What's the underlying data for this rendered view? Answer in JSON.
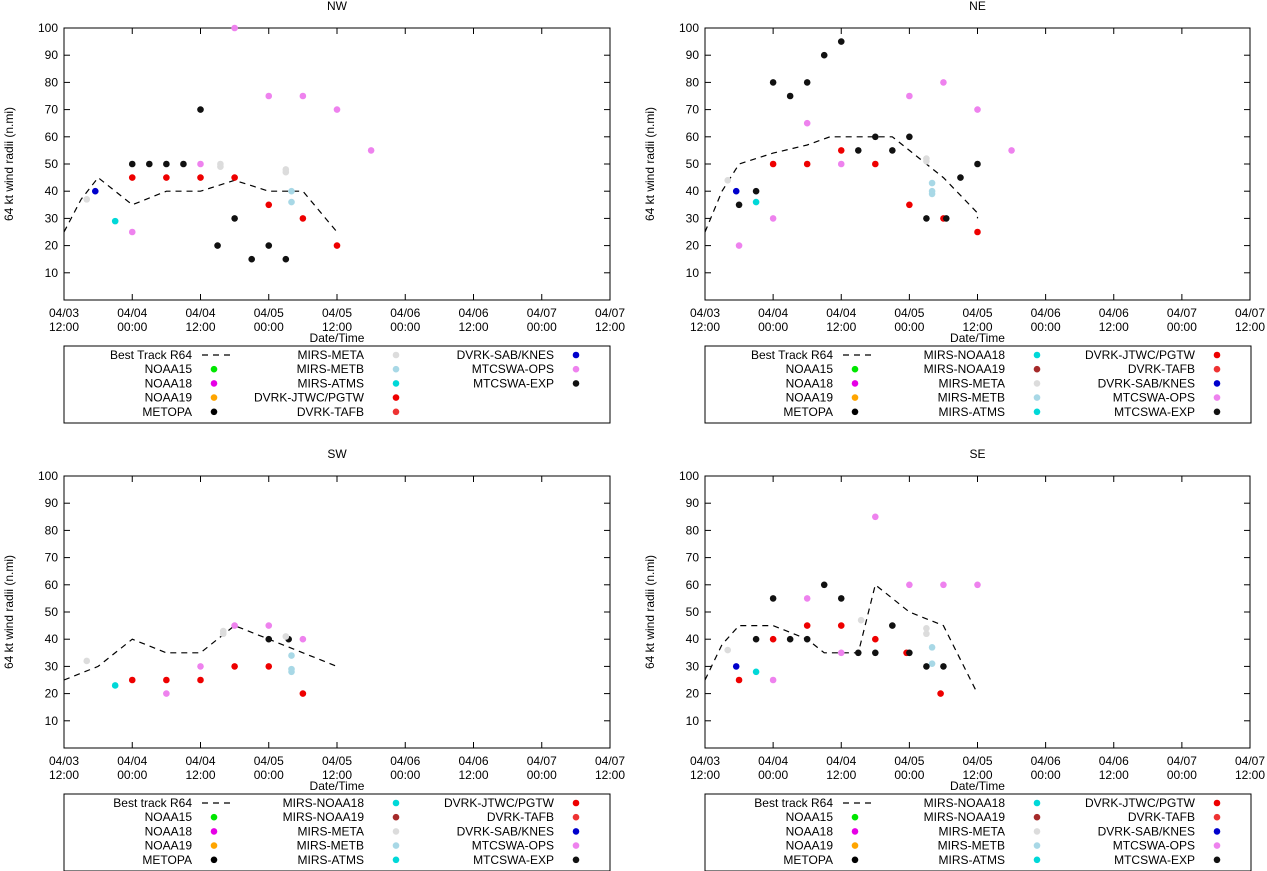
{
  "colors": {
    "NOAA15": "#00e600",
    "NOAA18": "#e600e6",
    "NOAA19": "#ffa500",
    "METOPA": "#000000",
    "MIRS-META": "#dcdcdc",
    "MIRS-METB": "#a8d8e6",
    "MIRS-ATMS": "#00d8d8",
    "MIRS-NOAA18": "#00d8d8",
    "MIRS-NOAA19": "#a52a2a",
    "DVRK-JTWC/PGTW": "#ee0000",
    "DVRK-TAFB": "#ee3333",
    "DVRK-SAB/KNES": "#0000cc",
    "MTCSWA-OPS": "#ee82ee",
    "MTCSWA-EXP": "#111111",
    "best_track": "#000000"
  },
  "chart_data": [
    {
      "type": "scatter",
      "title": "NW",
      "xlabel": "Date/Time",
      "ylabel": "64 kt wind radii (n.mi)",
      "xlim": [
        0,
        96
      ],
      "ylim": [
        0,
        100
      ],
      "yticks": [
        "10",
        "20",
        "30",
        "40",
        "50",
        "60",
        "70",
        "80",
        "90",
        "100"
      ],
      "xticks": [
        {
          "d": "04/03",
          "t": "12:00"
        },
        {
          "d": "04/04",
          "t": "00:00"
        },
        {
          "d": "04/04",
          "t": "12:00"
        },
        {
          "d": "04/05",
          "t": "00:00"
        },
        {
          "d": "04/05",
          "t": "12:00"
        },
        {
          "d": "04/06",
          "t": "00:00"
        },
        {
          "d": "04/06",
          "t": "12:00"
        },
        {
          "d": "04/07",
          "t": "00:00"
        },
        {
          "d": "04/07",
          "t": "12:00"
        }
      ],
      "best_track": [
        [
          0,
          25
        ],
        [
          3,
          37
        ],
        [
          6,
          45
        ],
        [
          9,
          40
        ],
        [
          12,
          35
        ],
        [
          18,
          40
        ],
        [
          24,
          40
        ],
        [
          30,
          44
        ],
        [
          36,
          40
        ],
        [
          42,
          40
        ],
        [
          48,
          25
        ]
      ],
      "points": [
        {
          "s": "DVRK-SAB/KNES",
          "x": 5.5,
          "y": 40
        },
        {
          "s": "MIRS-META",
          "x": 4,
          "y": 37
        },
        {
          "s": "MIRS-ATMS",
          "x": 9,
          "y": 29
        },
        {
          "s": "DVRK-JTWC/PGTW",
          "x": 12,
          "y": 45
        },
        {
          "s": "DVRK-JTWC/PGTW",
          "x": 18,
          "y": 45
        },
        {
          "s": "DVRK-JTWC/PGTW",
          "x": 24,
          "y": 45
        },
        {
          "s": "DVRK-JTWC/PGTW",
          "x": 30,
          "y": 45
        },
        {
          "s": "DVRK-JTWC/PGTW",
          "x": 36,
          "y": 35
        },
        {
          "s": "DVRK-JTWC/PGTW",
          "x": 42,
          "y": 30
        },
        {
          "s": "DVRK-JTWC/PGTW",
          "x": 48,
          "y": 20
        },
        {
          "s": "MTCSWA-EXP",
          "x": 12,
          "y": 50
        },
        {
          "s": "MTCSWA-EXP",
          "x": 15,
          "y": 50
        },
        {
          "s": "MTCSWA-EXP",
          "x": 18,
          "y": 50
        },
        {
          "s": "MTCSWA-EXP",
          "x": 21,
          "y": 50
        },
        {
          "s": "MTCSWA-EXP",
          "x": 24,
          "y": 70
        },
        {
          "s": "MTCSWA-EXP",
          "x": 27,
          "y": 20
        },
        {
          "s": "MTCSWA-EXP",
          "x": 30,
          "y": 30
        },
        {
          "s": "MTCSWA-EXP",
          "x": 33,
          "y": 15
        },
        {
          "s": "MTCSWA-EXP",
          "x": 36,
          "y": 20
        },
        {
          "s": "MTCSWA-EXP",
          "x": 39,
          "y": 15
        },
        {
          "s": "MTCSWA-OPS",
          "x": 12,
          "y": 25
        },
        {
          "s": "MTCSWA-OPS",
          "x": 24,
          "y": 50
        },
        {
          "s": "MTCSWA-OPS",
          "x": 30,
          "y": 100
        },
        {
          "s": "MTCSWA-OPS",
          "x": 36,
          "y": 75
        },
        {
          "s": "MTCSWA-OPS",
          "x": 42,
          "y": 75
        },
        {
          "s": "MTCSWA-OPS",
          "x": 48,
          "y": 70
        },
        {
          "s": "MTCSWA-OPS",
          "x": 54,
          "y": 55
        },
        {
          "s": "MIRS-META",
          "x": 27.5,
          "y": 50
        },
        {
          "s": "MIRS-META",
          "x": 27.5,
          "y": 49
        },
        {
          "s": "MIRS-META",
          "x": 39,
          "y": 48
        },
        {
          "s": "MIRS-META",
          "x": 39,
          "y": 47
        },
        {
          "s": "MIRS-METB",
          "x": 40,
          "y": 40
        },
        {
          "s": "MIRS-METB",
          "x": 40,
          "y": 36
        }
      ],
      "legend": [
        [
          "Best Track R64",
          "MIRS-META",
          "DVRK-SAB/KNES"
        ],
        [
          "NOAA15",
          "MIRS-METB",
          "MTCSWA-OPS"
        ],
        [
          "NOAA18",
          "MIRS-ATMS",
          "MTCSWA-EXP"
        ],
        [
          "NOAA19",
          "DVRK-JTWC/PGTW",
          ""
        ],
        [
          "METOPA",
          "DVRK-TAFB",
          ""
        ]
      ]
    },
    {
      "type": "scatter",
      "title": "NE",
      "xlabel": "Date/Time",
      "ylabel": "64 kt wind radii (n.mi)",
      "xlim": [
        0,
        96
      ],
      "ylim": [
        0,
        100
      ],
      "yticks": [
        "10",
        "20",
        "30",
        "40",
        "50",
        "60",
        "70",
        "80",
        "90",
        "100"
      ],
      "xticks": [
        {
          "d": "04/03",
          "t": "12:00"
        },
        {
          "d": "04/04",
          "t": "00:00"
        },
        {
          "d": "04/04",
          "t": "12:00"
        },
        {
          "d": "04/05",
          "t": "00:00"
        },
        {
          "d": "04/05",
          "t": "12:00"
        },
        {
          "d": "04/06",
          "t": "00:00"
        },
        {
          "d": "04/06",
          "t": "12:00"
        },
        {
          "d": "04/07",
          "t": "00:00"
        },
        {
          "d": "04/07",
          "t": "12:00"
        }
      ],
      "best_track": [
        [
          0,
          25
        ],
        [
          3,
          40
        ],
        [
          6,
          50
        ],
        [
          12,
          54
        ],
        [
          18,
          57
        ],
        [
          22,
          60
        ],
        [
          27,
          60
        ],
        [
          30,
          60
        ],
        [
          33,
          60
        ],
        [
          36,
          55
        ],
        [
          42,
          45
        ],
        [
          48,
          32
        ],
        [
          48,
          30
        ]
      ],
      "points": [
        {
          "s": "MIRS-META",
          "x": 4,
          "y": 44
        },
        {
          "s": "DVRK-SAB/KNES",
          "x": 5.5,
          "y": 40
        },
        {
          "s": "MTCSWA-EXP",
          "x": 6,
          "y": 35
        },
        {
          "s": "MTCSWA-OPS",
          "x": 6,
          "y": 20
        },
        {
          "s": "MIRS-ATMS",
          "x": 9,
          "y": 36
        },
        {
          "s": "MTCSWA-EXP",
          "x": 9,
          "y": 40
        },
        {
          "s": "MTCSWA-EXP",
          "x": 12,
          "y": 80
        },
        {
          "s": "MTCSWA-OPS",
          "x": 12,
          "y": 30
        },
        {
          "s": "DVRK-JTWC/PGTW",
          "x": 12,
          "y": 50
        },
        {
          "s": "MTCSWA-EXP",
          "x": 15,
          "y": 75
        },
        {
          "s": "MTCSWA-EXP",
          "x": 18,
          "y": 80
        },
        {
          "s": "MTCSWA-OPS",
          "x": 18,
          "y": 65
        },
        {
          "s": "DVRK-JTWC/PGTW",
          "x": 18,
          "y": 50
        },
        {
          "s": "MTCSWA-EXP",
          "x": 21,
          "y": 90
        },
        {
          "s": "MTCSWA-EXP",
          "x": 24,
          "y": 95
        },
        {
          "s": "DVRK-JTWC/PGTW",
          "x": 24,
          "y": 55
        },
        {
          "s": "MTCSWA-OPS",
          "x": 24,
          "y": 50
        },
        {
          "s": "MTCSWA-EXP",
          "x": 27,
          "y": 55
        },
        {
          "s": "MTCSWA-EXP",
          "x": 30,
          "y": 60
        },
        {
          "s": "DVRK-JTWC/PGTW",
          "x": 30,
          "y": 50
        },
        {
          "s": "MTCSWA-EXP",
          "x": 33,
          "y": 55
        },
        {
          "s": "MTCSWA-EXP",
          "x": 36,
          "y": 60
        },
        {
          "s": "MTCSWA-OPS",
          "x": 36,
          "y": 75
        },
        {
          "s": "DVRK-JTWC/PGTW",
          "x": 36,
          "y": 35
        },
        {
          "s": "MIRS-META",
          "x": 39,
          "y": 52
        },
        {
          "s": "MIRS-META",
          "x": 39,
          "y": 51
        },
        {
          "s": "MIRS-METB",
          "x": 40,
          "y": 43
        },
        {
          "s": "MIRS-METB",
          "x": 40,
          "y": 40
        },
        {
          "s": "MIRS-METB",
          "x": 40,
          "y": 39
        },
        {
          "s": "MTCSWA-EXP",
          "x": 39,
          "y": 30
        },
        {
          "s": "DVRK-JTWC/PGTW",
          "x": 42,
          "y": 30
        },
        {
          "s": "MTCSWA-EXP",
          "x": 42.5,
          "y": 30
        },
        {
          "s": "MTCSWA-OPS",
          "x": 42,
          "y": 80
        },
        {
          "s": "MTCSWA-EXP",
          "x": 45,
          "y": 45
        },
        {
          "s": "MTCSWA-EXP",
          "x": 48,
          "y": 50
        },
        {
          "s": "MTCSWA-OPS",
          "x": 48,
          "y": 70
        },
        {
          "s": "DVRK-JTWC/PGTW",
          "x": 48,
          "y": 25
        },
        {
          "s": "MTCSWA-OPS",
          "x": 54,
          "y": 55
        }
      ],
      "legend": [
        [
          "Best Track R64",
          "MIRS-NOAA18",
          "DVRK-JTWC/PGTW"
        ],
        [
          "NOAA15",
          "MIRS-NOAA19",
          "DVRK-TAFB"
        ],
        [
          "NOAA18",
          "MIRS-META",
          "DVRK-SAB/KNES"
        ],
        [
          "NOAA19",
          "MIRS-METB",
          "MTCSWA-OPS"
        ],
        [
          "METOPA",
          "MIRS-ATMS",
          "MTCSWA-EXP"
        ]
      ]
    },
    {
      "type": "scatter",
      "title": "SW",
      "xlabel": "Date/Time",
      "ylabel": "64 kt wind radii (n.mi)",
      "xlim": [
        0,
        96
      ],
      "ylim": [
        0,
        100
      ],
      "yticks": [
        "10",
        "20",
        "30",
        "40",
        "50",
        "60",
        "70",
        "80",
        "90",
        "100"
      ],
      "xticks": [
        {
          "d": "04/03",
          "t": "12:00"
        },
        {
          "d": "04/04",
          "t": "00:00"
        },
        {
          "d": "04/04",
          "t": "12:00"
        },
        {
          "d": "04/05",
          "t": "00:00"
        },
        {
          "d": "04/05",
          "t": "12:00"
        },
        {
          "d": "04/06",
          "t": "00:00"
        },
        {
          "d": "04/06",
          "t": "12:00"
        },
        {
          "d": "04/07",
          "t": "00:00"
        },
        {
          "d": "04/07",
          "t": "12:00"
        }
      ],
      "best_track": [
        [
          0,
          25
        ],
        [
          6,
          30
        ],
        [
          12,
          40
        ],
        [
          18,
          35
        ],
        [
          24,
          35
        ],
        [
          30,
          45
        ],
        [
          36,
          40
        ],
        [
          42,
          35
        ],
        [
          48,
          30
        ]
      ],
      "points": [
        {
          "s": "MIRS-META",
          "x": 4,
          "y": 32
        },
        {
          "s": "MIRS-ATMS",
          "x": 9,
          "y": 23
        },
        {
          "s": "DVRK-JTWC/PGTW",
          "x": 12,
          "y": 25
        },
        {
          "s": "DVRK-JTWC/PGTW",
          "x": 18,
          "y": 25
        },
        {
          "s": "DVRK-JTWC/PGTW",
          "x": 24,
          "y": 25
        },
        {
          "s": "DVRK-JTWC/PGTW",
          "x": 30,
          "y": 30
        },
        {
          "s": "DVRK-JTWC/PGTW",
          "x": 36,
          "y": 30
        },
        {
          "s": "DVRK-JTWC/PGTW",
          "x": 42,
          "y": 20
        },
        {
          "s": "MTCSWA-OPS",
          "x": 18,
          "y": 20
        },
        {
          "s": "MTCSWA-OPS",
          "x": 24,
          "y": 30
        },
        {
          "s": "MTCSWA-OPS",
          "x": 30,
          "y": 45
        },
        {
          "s": "MTCSWA-OPS",
          "x": 36,
          "y": 45
        },
        {
          "s": "MTCSWA-OPS",
          "x": 42,
          "y": 40
        },
        {
          "s": "MIRS-META",
          "x": 28,
          "y": 43
        },
        {
          "s": "MIRS-META",
          "x": 28,
          "y": 42
        },
        {
          "s": "MTCSWA-EXP",
          "x": 36,
          "y": 40
        },
        {
          "s": "MTCSWA-EXP",
          "x": 39.5,
          "y": 40
        },
        {
          "s": "MIRS-META",
          "x": 39,
          "y": 41
        },
        {
          "s": "MIRS-METB",
          "x": 40,
          "y": 34
        },
        {
          "s": "MIRS-METB",
          "x": 40,
          "y": 29
        },
        {
          "s": "MIRS-METB",
          "x": 40,
          "y": 28
        }
      ],
      "legend": [
        [
          "Best track R64",
          "MIRS-NOAA18",
          "DVRK-JTWC/PGTW"
        ],
        [
          "NOAA15",
          "MIRS-NOAA19",
          "DVRK-TAFB"
        ],
        [
          "NOAA18",
          "MIRS-META",
          "DVRK-SAB/KNES"
        ],
        [
          "NOAA19",
          "MIRS-METB",
          "MTCSWA-OPS"
        ],
        [
          "METOPA",
          "MIRS-ATMS",
          "MTCSWA-EXP"
        ]
      ]
    },
    {
      "type": "scatter",
      "title": "SE",
      "xlabel": "Date/Time",
      "ylabel": "64 kt wind radii (n.mi)",
      "xlim": [
        0,
        96
      ],
      "ylim": [
        0,
        100
      ],
      "yticks": [
        "10",
        "20",
        "30",
        "40",
        "50",
        "60",
        "70",
        "80",
        "90",
        "100"
      ],
      "xticks": [
        {
          "d": "04/03",
          "t": "12:00"
        },
        {
          "d": "04/04",
          "t": "00:00"
        },
        {
          "d": "04/04",
          "t": "12:00"
        },
        {
          "d": "04/05",
          "t": "00:00"
        },
        {
          "d": "04/05",
          "t": "12:00"
        },
        {
          "d": "04/06",
          "t": "00:00"
        },
        {
          "d": "04/06",
          "t": "12:00"
        },
        {
          "d": "04/07",
          "t": "00:00"
        },
        {
          "d": "04/07",
          "t": "12:00"
        }
      ],
      "best_track": [
        [
          0,
          25
        ],
        [
          3,
          38
        ],
        [
          6,
          45
        ],
        [
          12,
          45
        ],
        [
          18,
          40
        ],
        [
          21,
          35
        ],
        [
          27,
          35
        ],
        [
          30,
          60
        ],
        [
          36,
          50
        ],
        [
          42,
          45
        ],
        [
          48,
          20
        ]
      ],
      "points": [
        {
          "s": "MIRS-META",
          "x": 4,
          "y": 36
        },
        {
          "s": "DVRK-SAB/KNES",
          "x": 5.5,
          "y": 30
        },
        {
          "s": "DVRK-JTWC/PGTW",
          "x": 6,
          "y": 25
        },
        {
          "s": "MIRS-ATMS",
          "x": 9,
          "y": 28
        },
        {
          "s": "MTCSWA-EXP",
          "x": 9,
          "y": 40
        },
        {
          "s": "MTCSWA-EXP",
          "x": 12,
          "y": 55
        },
        {
          "s": "DVRK-JTWC/PGTW",
          "x": 12,
          "y": 40
        },
        {
          "s": "MTCSWA-OPS",
          "x": 12,
          "y": 25
        },
        {
          "s": "MTCSWA-EXP",
          "x": 15,
          "y": 40
        },
        {
          "s": "MTCSWA-EXP",
          "x": 18,
          "y": 40
        },
        {
          "s": "DVRK-JTWC/PGTW",
          "x": 18,
          "y": 45
        },
        {
          "s": "MTCSWA-OPS",
          "x": 18,
          "y": 55
        },
        {
          "s": "MTCSWA-EXP",
          "x": 21,
          "y": 60
        },
        {
          "s": "MTCSWA-EXP",
          "x": 24,
          "y": 55
        },
        {
          "s": "DVRK-JTWC/PGTW",
          "x": 24,
          "y": 45
        },
        {
          "s": "MTCSWA-OPS",
          "x": 24,
          "y": 35
        },
        {
          "s": "MTCSWA-EXP",
          "x": 27,
          "y": 35
        },
        {
          "s": "MIRS-META",
          "x": 27.5,
          "y": 47
        },
        {
          "s": "MTCSWA-EXP",
          "x": 30,
          "y": 35
        },
        {
          "s": "DVRK-JTWC/PGTW",
          "x": 30,
          "y": 40
        },
        {
          "s": "MTCSWA-OPS",
          "x": 30,
          "y": 85
        },
        {
          "s": "MTCSWA-EXP",
          "x": 33,
          "y": 45
        },
        {
          "s": "DVRK-JTWC/PGTW",
          "x": 35.5,
          "y": 35
        },
        {
          "s": "MTCSWA-EXP",
          "x": 36,
          "y": 35
        },
        {
          "s": "MTCSWA-OPS",
          "x": 36,
          "y": 60
        },
        {
          "s": "MIRS-META",
          "x": 39,
          "y": 44
        },
        {
          "s": "MIRS-META",
          "x": 39,
          "y": 42
        },
        {
          "s": "MIRS-METB",
          "x": 40,
          "y": 37
        },
        {
          "s": "MIRS-METB",
          "x": 40,
          "y": 31
        },
        {
          "s": "MTCSWA-EXP",
          "x": 39,
          "y": 30
        },
        {
          "s": "MTCSWA-EXP",
          "x": 42,
          "y": 30
        },
        {
          "s": "DVRK-JTWC/PGTW",
          "x": 41.5,
          "y": 20
        },
        {
          "s": "MTCSWA-OPS",
          "x": 42,
          "y": 60
        },
        {
          "s": "MTCSWA-OPS",
          "x": 48,
          "y": 60
        }
      ],
      "legend": [
        [
          "Best track R64",
          "MIRS-NOAA18",
          "DVRK-JTWC/PGTW"
        ],
        [
          "NOAA15",
          "MIRS-NOAA19",
          "DVRK-TAFB"
        ],
        [
          "NOAA18",
          "MIRS-META",
          "DVRK-SAB/KNES"
        ],
        [
          "NOAA19",
          "MIRS-METB",
          "MTCSWA-OPS"
        ],
        [
          "METOPA",
          "MIRS-ATMS",
          "MTCSWA-EXP"
        ]
      ]
    }
  ]
}
